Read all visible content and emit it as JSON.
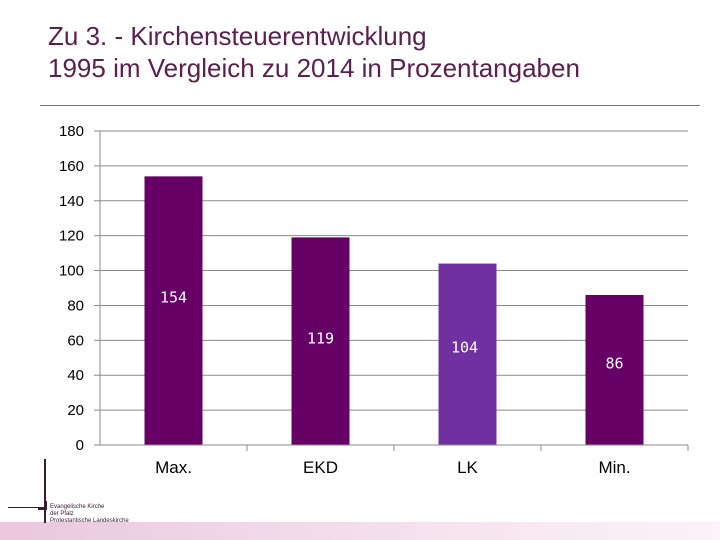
{
  "header": {
    "title_line1": "Zu 3. - Kirchensteuerentwicklung",
    "title_line2": "1995 im Vergleich zu 2014 in Prozentangaben"
  },
  "logo": {
    "line1": "Evangelische Kirche",
    "line2": "der Pfalz",
    "line3": "Protestantische Landeskirche"
  },
  "colors": {
    "bar_dark": "#660066",
    "bar_light": "#7030a0",
    "title": "#5b1f4e"
  },
  "chart_data": {
    "type": "bar",
    "title": "",
    "xlabel": "",
    "ylabel": "",
    "ylim": [
      0,
      180
    ],
    "yticks": [
      0,
      20,
      40,
      60,
      80,
      100,
      120,
      140,
      160,
      180
    ],
    "grid": true,
    "categories": [
      "Max.",
      "EKD",
      "LK",
      "Min."
    ],
    "values": [
      154,
      119,
      104,
      86
    ],
    "value_labels": [
      "154",
      "119",
      "104",
      "86"
    ],
    "bar_colors": [
      "#660066",
      "#660066",
      "#7030a0",
      "#660066"
    ]
  }
}
